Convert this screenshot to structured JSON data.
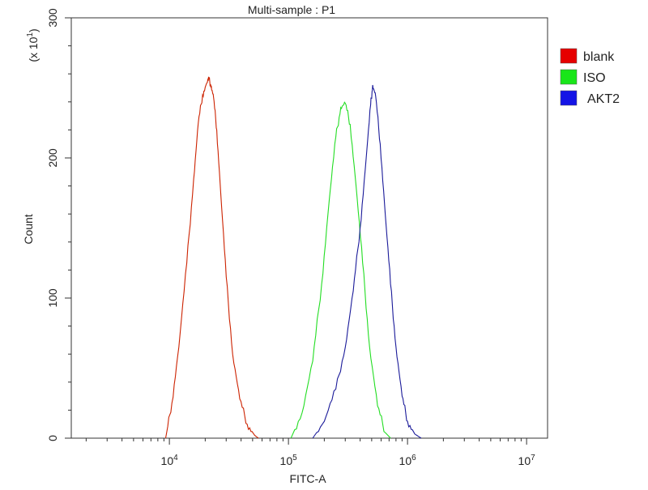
{
  "chart_data": {
    "type": "line",
    "title": "Multi-sample : P1",
    "xlabel": "FITC-A",
    "ylabel": "Count",
    "y_multiplier_label": {
      "prefix": "(x 10",
      "exp": "1",
      "suffix": ")"
    },
    "x_scale": "log",
    "xlim": [
      1500,
      15000000
    ],
    "ylim": [
      0,
      30
    ],
    "x_ticks": [
      {
        "base": "10",
        "exp": "4",
        "value": 10000
      },
      {
        "base": "10",
        "exp": "5",
        "value": 100000
      },
      {
        "base": "10",
        "exp": "6",
        "value": 1000000
      },
      {
        "base": "10",
        "exp": "7",
        "value": 10000000
      }
    ],
    "y_ticks": [
      "0",
      "100",
      "200",
      "300"
    ],
    "y_tick_values": [
      0,
      10,
      20,
      30
    ],
    "grid": false,
    "legend_position": "right",
    "series": [
      {
        "name": "blank",
        "color": "#cc2200",
        "legend_color": "#e60000",
        "x": [
          9300,
          10500,
          12000,
          14000,
          16000,
          17500,
          19000,
          20500,
          21500,
          22500,
          23500,
          25000,
          27000,
          30000,
          34000,
          39000,
          45000,
          52000,
          56000
        ],
        "y": [
          0,
          2.5,
          6.5,
          12.5,
          18.5,
          22.5,
          24.5,
          25.3,
          25.6,
          25.1,
          24.3,
          22.0,
          17.5,
          11.5,
          6.0,
          2.8,
          1.0,
          0.2,
          0
        ]
      },
      {
        "name": "ISO",
        "color": "#22dd22",
        "legend_color": "#19e619",
        "x": [
          105000,
          130000,
          160000,
          190000,
          220000,
          250000,
          275000,
          300000,
          330000,
          370000,
          420000,
          480000,
          560000,
          650000,
          720000
        ],
        "y": [
          0,
          1.8,
          5.5,
          11.0,
          17.0,
          21.5,
          23.6,
          23.9,
          22.4,
          18.0,
          12.5,
          6.5,
          2.3,
          0.4,
          0
        ]
      },
      {
        "name": "AKT2",
        "color": "#1a1a99",
        "legend_color": "#1414e6",
        "x": [
          160000,
          200000,
          250000,
          300000,
          350000,
          400000,
          450000,
          490000,
          510000,
          540000,
          590000,
          650000,
          720000,
          800000,
          900000,
          1000000,
          1150000,
          1300000
        ],
        "y": [
          0,
          1.2,
          3.5,
          6.5,
          10.5,
          15.0,
          20.0,
          23.8,
          25.2,
          24.4,
          21.0,
          16.0,
          11.0,
          6.5,
          3.0,
          1.2,
          0.3,
          0
        ]
      }
    ]
  }
}
